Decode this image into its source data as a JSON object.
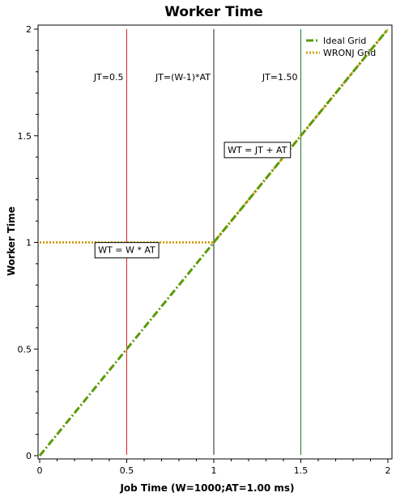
{
  "chart_data": {
    "type": "line",
    "title": "Worker Time",
    "xlabel": "Job Time (W=1000;AT=1.00 ms)",
    "ylabel": "Worker Time",
    "xlim": [
      0,
      2
    ],
    "ylim": [
      0,
      2
    ],
    "x_ticks": [
      0,
      0.5,
      1,
      1.5,
      2
    ],
    "x_tick_labels": [
      "0",
      "0.5",
      "1",
      "1.5",
      "2"
    ],
    "y_ticks": [
      0,
      0.5,
      1,
      1.5,
      2
    ],
    "y_tick_labels": [
      "0",
      "0.5",
      "1",
      "1.5",
      "2"
    ],
    "grid": false,
    "legend_position": "top-right",
    "series": [
      {
        "name": "Ideal Grid",
        "color": "#5a9a08",
        "style": "dash-dot",
        "x": [
          0,
          1,
          2
        ],
        "y": [
          0,
          1,
          2
        ]
      },
      {
        "name": "WRONJ Grid",
        "color": "#d4a017",
        "style": "dotted",
        "x": [
          0,
          1,
          2
        ],
        "y": [
          1,
          1,
          2
        ]
      }
    ],
    "vertical_lines": [
      {
        "x": 0.5,
        "color": "#e0261d",
        "label": "JT=0.5",
        "label_y": 1.76
      },
      {
        "x": 1.0,
        "color": "#222222",
        "label": "JT=(W-1)*AT",
        "label_y": 1.76
      },
      {
        "x": 1.5,
        "color": "#1a7a2a",
        "label": "JT=1.50",
        "label_y": 1.76
      }
    ],
    "annotations": [
      {
        "text": "WT = W * AT",
        "x": 0.5,
        "y": 0.95
      },
      {
        "text": "WT = JT + AT",
        "x": 1.25,
        "y": 1.42
      }
    ]
  }
}
